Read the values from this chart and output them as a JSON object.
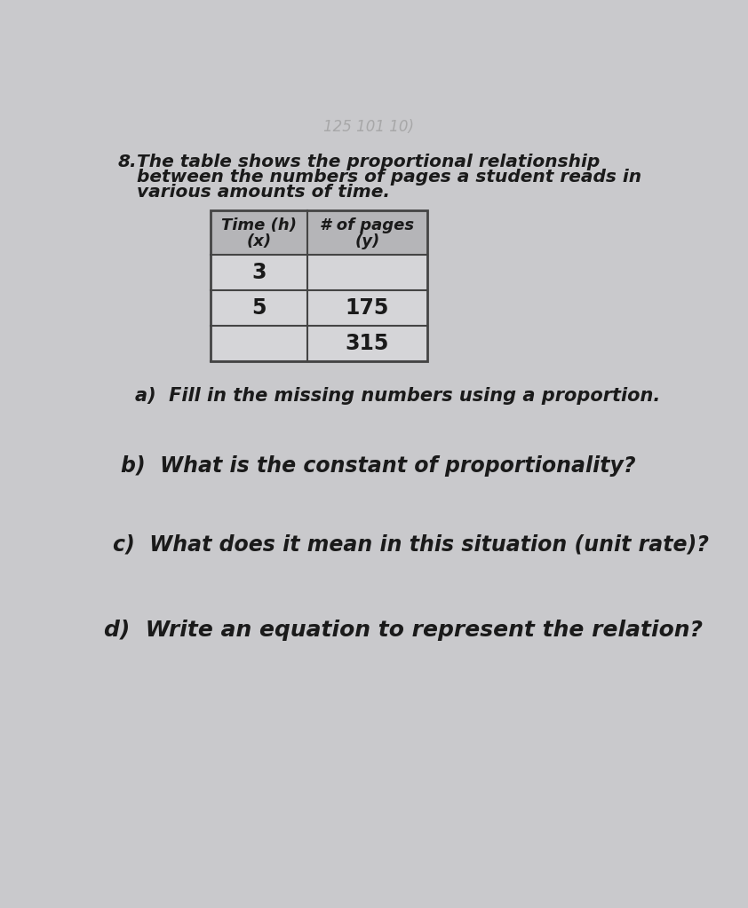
{
  "background_color": "#c9c9cc",
  "problem_number": "8.",
  "problem_text_line1": "The table shows the proportional relationship",
  "problem_text_line2": "between the numbers of pages a student reads in",
  "problem_text_line3": "various amounts of time.",
  "col1_header_line1": "Time (h)",
  "col1_header_line2": "(x)",
  "col2_header_line1": "# of pages",
  "col2_header_line2": "(y)",
  "table_rows": [
    [
      "3",
      ""
    ],
    [
      "5",
      "175"
    ],
    [
      "",
      "315"
    ]
  ],
  "question_a": "a)  Fill in the missing numbers using a proportion.",
  "question_b": "b)  What is the constant of proportionality?",
  "question_c": "c)  What does it mean in this situation (unit rate)?",
  "question_d": "d)  Write an equation to represent the relation?",
  "handwriting_text": "125 101 10)",
  "table_header_bg": "#b5b5b8",
  "table_row_bg": "#d5d5d8",
  "table_border_color": "#444444",
  "text_color": "#1a1a1a",
  "font_size_problem": 14.5,
  "font_size_table_header": 13,
  "font_size_table_data": 17,
  "font_size_questions_a": 15,
  "font_size_questions_bcd": 17
}
